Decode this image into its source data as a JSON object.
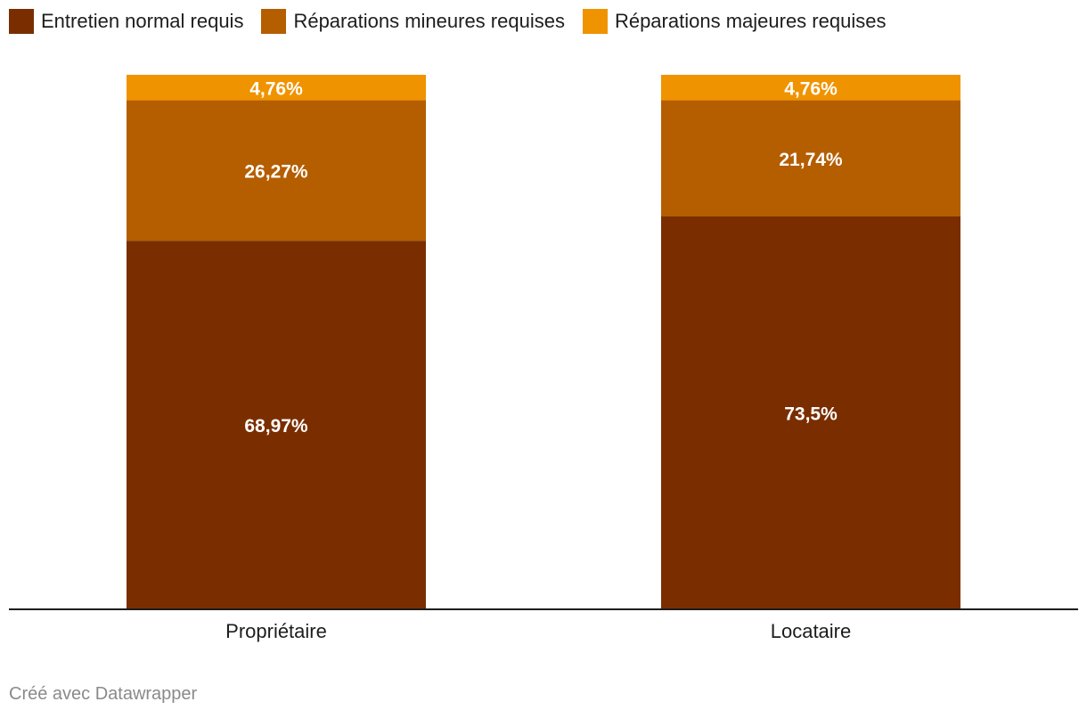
{
  "chart_data": {
    "type": "bar",
    "stacked": true,
    "normalized": true,
    "categories": [
      "Propriétaire",
      "Locataire"
    ],
    "series": [
      {
        "name": "Entretien normal requis",
        "color": "#7a2e00",
        "values": [
          68.97,
          73.5
        ],
        "labels": [
          "68,97%",
          "73,5%"
        ]
      },
      {
        "name": "Réparations mineures requises",
        "color": "#b55e00",
        "values": [
          26.27,
          21.74
        ],
        "labels": [
          "26,27%",
          "21,74%"
        ]
      },
      {
        "name": "Réparations majeures requises",
        "color": "#f09300",
        "values": [
          4.76,
          4.76
        ],
        "labels": [
          "4,76%",
          "4,76%"
        ]
      }
    ],
    "ylim": [
      0,
      100
    ],
    "legend_position": "top-left",
    "grid": false
  },
  "credit": "Créé avec Datawrapper"
}
